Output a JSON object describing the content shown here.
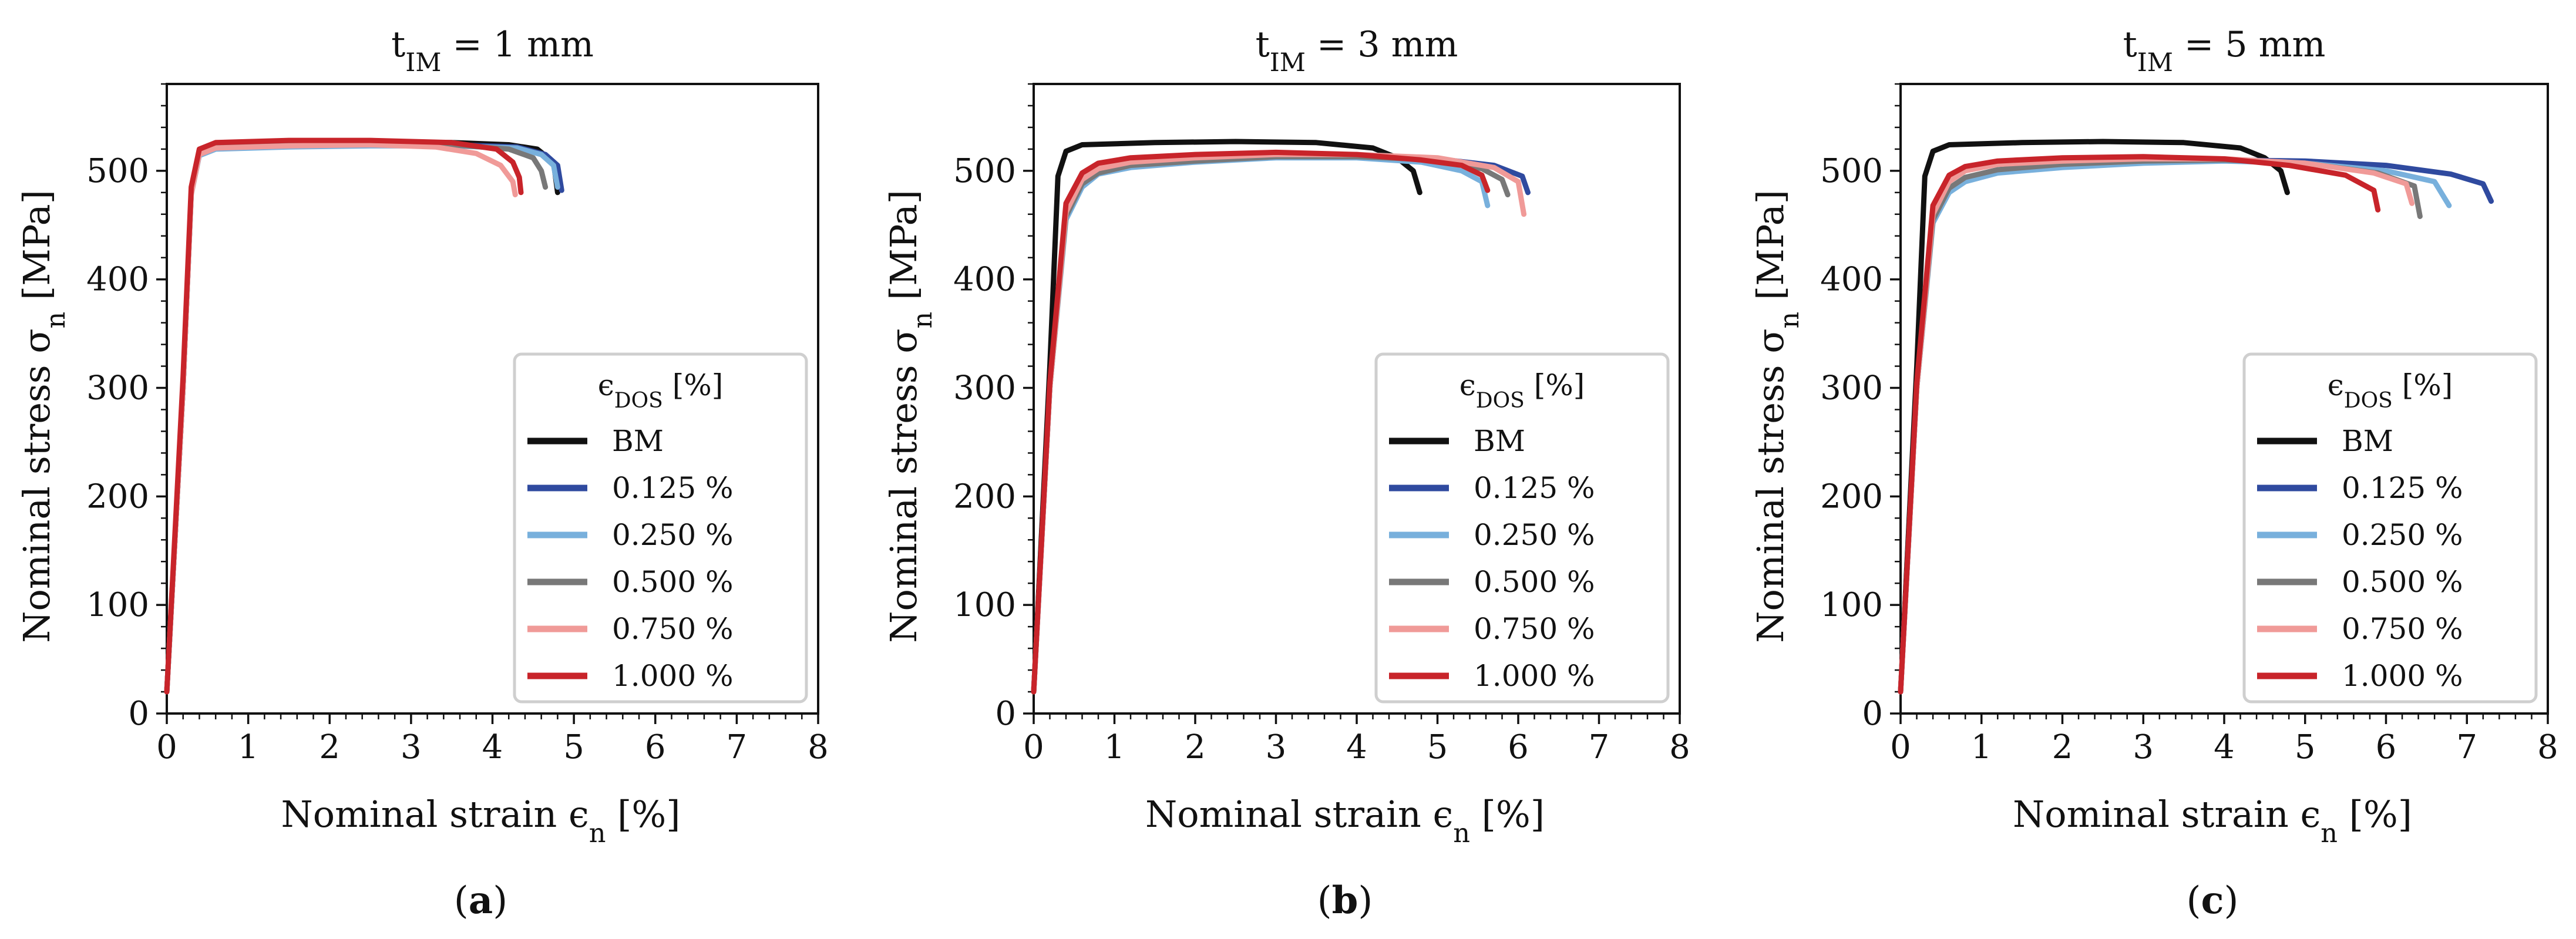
{
  "figure": {
    "captions": [
      "(a)",
      "(b)",
      "(c)"
    ]
  },
  "legend": {
    "title": "ϵDOS [%]",
    "entries": [
      {
        "label": "BM",
        "color": "#111111"
      },
      {
        "label": "0.125 %",
        "color": "#2f4a9f"
      },
      {
        "label": "0.250 %",
        "color": "#78b0dc"
      },
      {
        "label": "0.500 %",
        "color": "#787878"
      },
      {
        "label": "0.750 %",
        "color": "#f09a98"
      },
      {
        "label": "1.000 %",
        "color": "#c8242a"
      }
    ]
  },
  "chart_data": [
    {
      "type": "line",
      "title": "tIM = 1 mm",
      "caption": "(a)",
      "xlabel": "Nominal strain   ϵn [%]",
      "ylabel": "Nominal stress   σn [MPa]",
      "xlim": [
        0,
        8
      ],
      "ylim": [
        0,
        580
      ],
      "xticks": [
        0,
        1,
        2,
        3,
        4,
        5,
        6,
        7,
        8
      ],
      "yticks": [
        0,
        100,
        200,
        300,
        400,
        500
      ],
      "series": [
        {
          "name": "BM",
          "color": "#111111",
          "points": [
            [
              0,
              20
            ],
            [
              0.2,
              300
            ],
            [
              0.3,
              480
            ],
            [
              0.4,
              518
            ],
            [
              0.6,
              524
            ],
            [
              1.5,
              526
            ],
            [
              2.5,
              527
            ],
            [
              3.5,
              526
            ],
            [
              4.2,
              524
            ],
            [
              4.55,
              520
            ],
            [
              4.75,
              508
            ],
            [
              4.8,
              480
            ]
          ]
        },
        {
          "name": "0.125 %",
          "color": "#2f4a9f",
          "points": [
            [
              0,
              20
            ],
            [
              0.2,
              300
            ],
            [
              0.3,
              480
            ],
            [
              0.4,
              515
            ],
            [
              0.6,
              521
            ],
            [
              1.5,
              523
            ],
            [
              2.5,
              524
            ],
            [
              3.5,
              524
            ],
            [
              4.3,
              522
            ],
            [
              4.65,
              515
            ],
            [
              4.8,
              505
            ],
            [
              4.85,
              482
            ]
          ]
        },
        {
          "name": "0.250 %",
          "color": "#78b0dc",
          "points": [
            [
              0,
              20
            ],
            [
              0.2,
              300
            ],
            [
              0.3,
              478
            ],
            [
              0.4,
              514
            ],
            [
              0.6,
              520
            ],
            [
              1.5,
              522
            ],
            [
              2.5,
              523
            ],
            [
              3.5,
              523
            ],
            [
              4.3,
              521
            ],
            [
              4.6,
              515
            ],
            [
              4.75,
              505
            ],
            [
              4.8,
              485
            ]
          ]
        },
        {
          "name": "0.500 %",
          "color": "#787878",
          "points": [
            [
              0,
              20
            ],
            [
              0.2,
              300
            ],
            [
              0.3,
              480
            ],
            [
              0.4,
              516
            ],
            [
              0.6,
              522
            ],
            [
              1.5,
              524
            ],
            [
              2.5,
              525
            ],
            [
              3.5,
              524
            ],
            [
              4.2,
              520
            ],
            [
              4.5,
              512
            ],
            [
              4.6,
              500
            ],
            [
              4.65,
              485
            ]
          ]
        },
        {
          "name": "0.750 %",
          "color": "#f09a98",
          "points": [
            [
              0,
              20
            ],
            [
              0.2,
              300
            ],
            [
              0.3,
              478
            ],
            [
              0.4,
              515
            ],
            [
              0.6,
              521
            ],
            [
              1.5,
              523
            ],
            [
              2.5,
              524
            ],
            [
              3.3,
              522
            ],
            [
              3.8,
              516
            ],
            [
              4.1,
              505
            ],
            [
              4.25,
              490
            ],
            [
              4.28,
              478
            ]
          ]
        },
        {
          "name": "1.000 %",
          "color": "#c8242a",
          "points": [
            [
              0,
              20
            ],
            [
              0.2,
              310
            ],
            [
              0.3,
              485
            ],
            [
              0.4,
              520
            ],
            [
              0.6,
              526
            ],
            [
              1.5,
              528
            ],
            [
              2.5,
              528
            ],
            [
              3.5,
              526
            ],
            [
              4.05,
              520
            ],
            [
              4.25,
              508
            ],
            [
              4.33,
              494
            ],
            [
              4.35,
              480
            ]
          ]
        }
      ]
    },
    {
      "type": "line",
      "title": "tIM = 3 mm",
      "caption": "(b)",
      "xlabel": "Nominal strain   ϵn [%]",
      "ylabel": "Nominal stress   σn [MPa]",
      "xlim": [
        0,
        8
      ],
      "ylim": [
        0,
        580
      ],
      "xticks": [
        0,
        1,
        2,
        3,
        4,
        5,
        6,
        7,
        8
      ],
      "yticks": [
        0,
        100,
        200,
        300,
        400,
        500
      ],
      "series": [
        {
          "name": "BM",
          "color": "#111111",
          "points": [
            [
              0,
              20
            ],
            [
              0.2,
              320
            ],
            [
              0.3,
              495
            ],
            [
              0.4,
              518
            ],
            [
              0.6,
              524
            ],
            [
              1.5,
              526
            ],
            [
              2.5,
              527
            ],
            [
              3.5,
              526
            ],
            [
              4.2,
              521
            ],
            [
              4.5,
              512
            ],
            [
              4.7,
              500
            ],
            [
              4.78,
              480
            ]
          ]
        },
        {
          "name": "0.125 %",
          "color": "#2f4a9f",
          "points": [
            [
              0,
              20
            ],
            [
              0.2,
              300
            ],
            [
              0.4,
              460
            ],
            [
              0.6,
              490
            ],
            [
              0.8,
              500
            ],
            [
              1.2,
              506
            ],
            [
              2,
              510
            ],
            [
              3,
              514
            ],
            [
              4,
              514
            ],
            [
              5,
              511
            ],
            [
              5.7,
              505
            ],
            [
              6.05,
              495
            ],
            [
              6.12,
              480
            ]
          ]
        },
        {
          "name": "0.250 %",
          "color": "#78b0dc",
          "points": [
            [
              0,
              20
            ],
            [
              0.2,
              300
            ],
            [
              0.4,
              455
            ],
            [
              0.6,
              485
            ],
            [
              0.8,
              497
            ],
            [
              1.2,
              503
            ],
            [
              2,
              508
            ],
            [
              3,
              512
            ],
            [
              4,
              512
            ],
            [
              4.8,
              508
            ],
            [
              5.3,
              500
            ],
            [
              5.55,
              490
            ],
            [
              5.62,
              468
            ]
          ]
        },
        {
          "name": "0.500 %",
          "color": "#787878",
          "points": [
            [
              0,
              20
            ],
            [
              0.2,
              300
            ],
            [
              0.4,
              458
            ],
            [
              0.6,
              488
            ],
            [
              0.8,
              498
            ],
            [
              1.2,
              505
            ],
            [
              2,
              509
            ],
            [
              3,
              513
            ],
            [
              4,
              513
            ],
            [
              5,
              510
            ],
            [
              5.55,
              502
            ],
            [
              5.8,
              492
            ],
            [
              5.87,
              478
            ]
          ]
        },
        {
          "name": "0.750 %",
          "color": "#f09a98",
          "points": [
            [
              0,
              20
            ],
            [
              0.2,
              300
            ],
            [
              0.4,
              462
            ],
            [
              0.6,
              492
            ],
            [
              0.8,
              502
            ],
            [
              1.2,
              508
            ],
            [
              2,
              512
            ],
            [
              3,
              515
            ],
            [
              4,
              515
            ],
            [
              5,
              512
            ],
            [
              5.7,
              503
            ],
            [
              6.0,
              490
            ],
            [
              6.07,
              460
            ]
          ]
        },
        {
          "name": "1.000 %",
          "color": "#c8242a",
          "points": [
            [
              0,
              20
            ],
            [
              0.2,
              305
            ],
            [
              0.4,
              470
            ],
            [
              0.6,
              498
            ],
            [
              0.8,
              507
            ],
            [
              1.2,
              512
            ],
            [
              2,
              515
            ],
            [
              3,
              517
            ],
            [
              4,
              515
            ],
            [
              4.8,
              510
            ],
            [
              5.3,
              505
            ],
            [
              5.55,
              496
            ],
            [
              5.62,
              482
            ]
          ]
        }
      ]
    },
    {
      "type": "line",
      "title": "tIM = 5 mm",
      "caption": "(c)",
      "xlabel": "Nominal strain   ϵn [%]",
      "ylabel": "Nominal stress   σn [MPa]",
      "xlim": [
        0,
        8
      ],
      "ylim": [
        0,
        580
      ],
      "xticks": [
        0,
        1,
        2,
        3,
        4,
        5,
        6,
        7,
        8
      ],
      "yticks": [
        0,
        100,
        200,
        300,
        400,
        500
      ],
      "series": [
        {
          "name": "BM",
          "color": "#111111",
          "points": [
            [
              0,
              20
            ],
            [
              0.2,
              320
            ],
            [
              0.3,
              495
            ],
            [
              0.4,
              518
            ],
            [
              0.6,
              524
            ],
            [
              1.5,
              526
            ],
            [
              2.5,
              527
            ],
            [
              3.5,
              526
            ],
            [
              4.2,
              521
            ],
            [
              4.5,
              512
            ],
            [
              4.7,
              500
            ],
            [
              4.78,
              480
            ]
          ]
        },
        {
          "name": "0.125 %",
          "color": "#2f4a9f",
          "points": [
            [
              0,
              20
            ],
            [
              0.2,
              300
            ],
            [
              0.4,
              455
            ],
            [
              0.6,
              483
            ],
            [
              0.8,
              493
            ],
            [
              1.2,
              500
            ],
            [
              2,
              505
            ],
            [
              3,
              508
            ],
            [
              4,
              510
            ],
            [
              5,
              509
            ],
            [
              6,
              505
            ],
            [
              6.8,
              497
            ],
            [
              7.2,
              488
            ],
            [
              7.3,
              472
            ]
          ]
        },
        {
          "name": "0.250 %",
          "color": "#78b0dc",
          "points": [
            [
              0,
              20
            ],
            [
              0.2,
              300
            ],
            [
              0.4,
              452
            ],
            [
              0.6,
              480
            ],
            [
              0.8,
              490
            ],
            [
              1.2,
              498
            ],
            [
              2,
              503
            ],
            [
              3,
              507
            ],
            [
              4,
              509
            ],
            [
              5,
              507
            ],
            [
              6,
              500
            ],
            [
              6.6,
              490
            ],
            [
              6.78,
              468
            ]
          ]
        },
        {
          "name": "0.500 %",
          "color": "#787878",
          "points": [
            [
              0,
              20
            ],
            [
              0.2,
              300
            ],
            [
              0.4,
              455
            ],
            [
              0.6,
              484
            ],
            [
              0.8,
              494
            ],
            [
              1.2,
              501
            ],
            [
              2,
              506
            ],
            [
              3,
              509
            ],
            [
              4,
              510
            ],
            [
              5,
              507
            ],
            [
              5.9,
              498
            ],
            [
              6.35,
              486
            ],
            [
              6.42,
              458
            ]
          ]
        },
        {
          "name": "0.750 %",
          "color": "#f09a98",
          "points": [
            [
              0,
              20
            ],
            [
              0.2,
              300
            ],
            [
              0.4,
              460
            ],
            [
              0.6,
              490
            ],
            [
              0.8,
              500
            ],
            [
              1.2,
              506
            ],
            [
              2,
              509
            ],
            [
              3,
              511
            ],
            [
              4,
              511
            ],
            [
              5,
              507
            ],
            [
              5.85,
              498
            ],
            [
              6.25,
              488
            ],
            [
              6.32,
              470
            ]
          ]
        },
        {
          "name": "1.000 %",
          "color": "#c8242a",
          "points": [
            [
              0,
              20
            ],
            [
              0.2,
              305
            ],
            [
              0.4,
              468
            ],
            [
              0.6,
              496
            ],
            [
              0.8,
              504
            ],
            [
              1.2,
              509
            ],
            [
              2,
              512
            ],
            [
              3,
              513
            ],
            [
              4,
              511
            ],
            [
              4.8,
              505
            ],
            [
              5.5,
              496
            ],
            [
              5.85,
              482
            ],
            [
              5.9,
              464
            ]
          ]
        }
      ]
    }
  ]
}
